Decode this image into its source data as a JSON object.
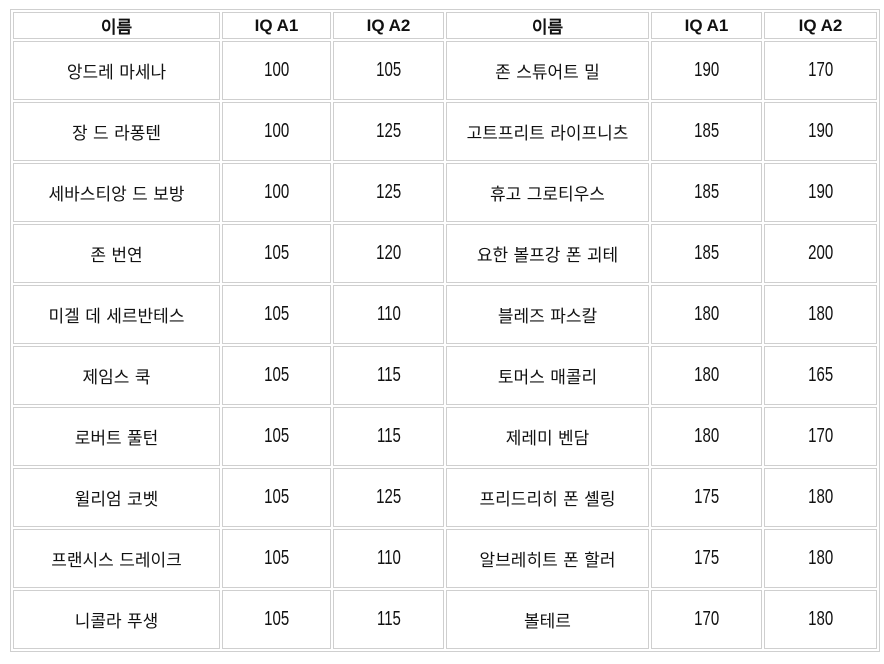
{
  "headers": [
    "이름",
    "IQ A1",
    "IQ A2",
    "이름",
    "IQ A1",
    "IQ A2"
  ],
  "rows": [
    [
      "앙드레 마세나",
      "100",
      "105",
      "존 스튜어트 밀",
      "190",
      "170"
    ],
    [
      "장 드 라퐁텐",
      "100",
      "125",
      "고트프리트 라이프니츠",
      "185",
      "190"
    ],
    [
      "세바스티앙 드 보방",
      "100",
      "125",
      "휴고 그로티우스",
      "185",
      "190"
    ],
    [
      "존 번연",
      "105",
      "120",
      "요한 볼프강 폰 괴테",
      "185",
      "200"
    ],
    [
      "미겔 데 세르반테스",
      "105",
      "110",
      "블레즈 파스칼",
      "180",
      "180"
    ],
    [
      "제임스 쿡",
      "105",
      "115",
      "토머스 매콜리",
      "180",
      "165"
    ],
    [
      "로버트 풀턴",
      "105",
      "115",
      "제레미 벤담",
      "180",
      "170"
    ],
    [
      "윌리엄 코벳",
      "105",
      "125",
      "프리드리히 폰 셸링",
      "175",
      "180"
    ],
    [
      "프랜시스 드레이크",
      "105",
      "110",
      "알브레히트 폰 할러",
      "175",
      "180"
    ],
    [
      "니콜라 푸생",
      "105",
      "115",
      "볼테르",
      "170",
      "180"
    ]
  ]
}
